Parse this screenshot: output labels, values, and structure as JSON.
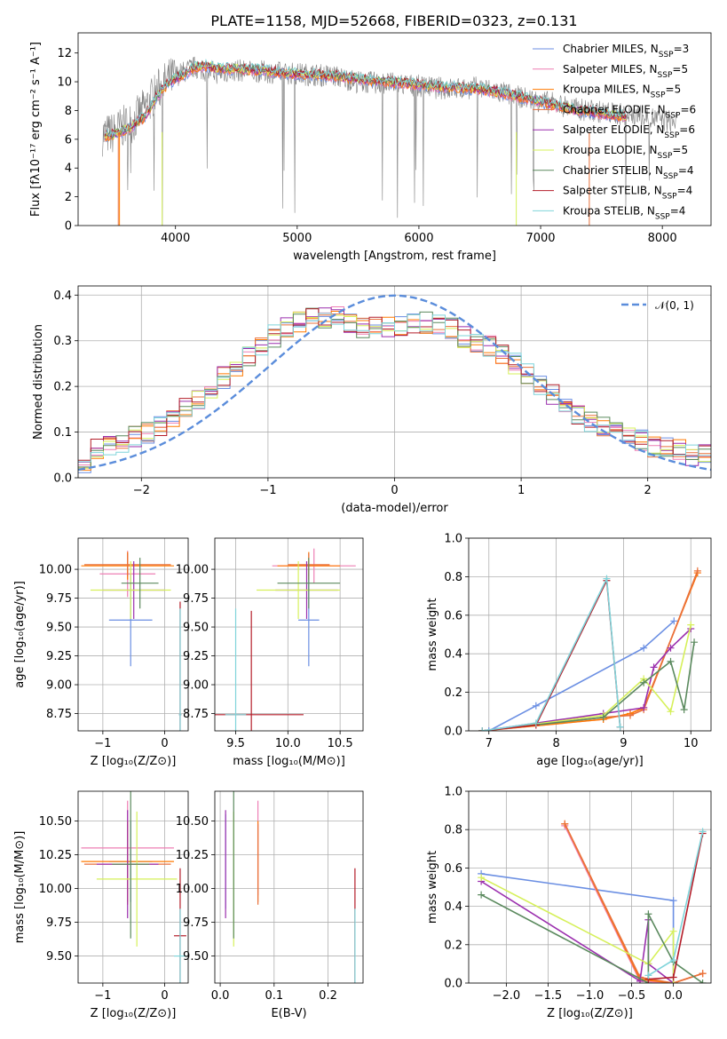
{
  "figure_title": "PLATE=1158, MJD=52668, FIBERID=0323, z=0.131",
  "colors": {
    "Chabrier MILES": "#6b8fe3",
    "Salpeter MILES": "#ee7fb4",
    "Kroupa MILES": "#ff7a00",
    "Chabrier ELODIE": "#e9713b",
    "Salpeter ELODIE": "#9b2fae",
    "Kroupa ELODIE": "#d6f05a",
    "Chabrier STELIB": "#5b8a5e",
    "Salpeter STELIB": "#b41e2a",
    "Kroupa STELIB": "#7fd4da",
    "data": "#808080",
    "normal": "#5b8ddb"
  },
  "chart_data": [
    {
      "type": "line",
      "title": "PLATE=1158, MJD=52668, FIBERID=0323, z=0.131",
      "xlabel": "wavelength [Angstrom, rest frame]",
      "ylabel": "Flux [fλ10⁻¹⁷ erg cm⁻² s⁻¹ A⁻¹]",
      "xlim": [
        3200,
        8400
      ],
      "ylim": [
        0,
        13.4
      ],
      "xticks": [
        4000,
        5000,
        6000,
        7000,
        8000
      ],
      "yticks": [
        0,
        2,
        4,
        6,
        8,
        10,
        12
      ],
      "legend_position": "top-right",
      "legend": [
        "Chabrier MILES, N_SSP=3",
        "Salpeter MILES, N_SSP=5",
        "Kroupa MILES, N_SSP=5",
        "Chabrier ELODIE, N_SSP=6",
        "Salpeter ELODIE, N_SSP=6",
        "Kroupa ELODIE, N_SSP=5",
        "Chabrier STELIB, N_SSP=4",
        "Salpeter STELIB, N_SSP=4",
        "Kroupa STELIB, N_SSP=4"
      ],
      "series": [
        {
          "name": "data",
          "x": [
            3400,
            3480,
            3550,
            3650,
            3750,
            3850,
            3950,
            4050,
            4150,
            4250,
            4350,
            4500,
            4700,
            4900,
            5100,
            5300,
            5500,
            5700,
            5900,
            6100,
            6300,
            6500,
            6700,
            6900,
            7100,
            7300,
            7500,
            7700,
            7900,
            8100
          ],
          "y": [
            6.3,
            6.4,
            6.8,
            7.2,
            8.2,
            9.4,
            10.2,
            10.6,
            11.0,
            10.8,
            10.6,
            10.8,
            10.7,
            10.6,
            10.5,
            10.4,
            10.0,
            9.9,
            9.8,
            9.6,
            9.5,
            9.6,
            9.2,
            8.8,
            8.5,
            8.1,
            7.9,
            7.7,
            7.5,
            7.2
          ]
        },
        {
          "name": "model",
          "x": [
            3400,
            3480,
            3550,
            3650,
            3750,
            3850,
            3950,
            4050,
            4150,
            4250,
            4350,
            4500,
            4700,
            4900,
            5100,
            5300,
            5500,
            5700,
            5900,
            6100,
            6300,
            6500,
            6700,
            6900,
            7100,
            7300,
            7500,
            7700
          ],
          "y": [
            6.2,
            6.3,
            6.5,
            6.9,
            7.6,
            9.0,
            10.0,
            10.4,
            11.0,
            11.1,
            10.9,
            10.9,
            10.8,
            10.6,
            10.5,
            10.4,
            10.2,
            10.0,
            9.9,
            9.7,
            9.6,
            9.5,
            9.2,
            8.8,
            8.4,
            8.0,
            7.8,
            7.6
          ]
        }
      ]
    },
    {
      "type": "line",
      "xlabel": "(data-model)/error",
      "ylabel": "Normed distribution",
      "xlim": [
        -2.5,
        2.5
      ],
      "ylim": [
        0,
        0.42
      ],
      "xticks": [
        -2,
        -1,
        0,
        1,
        2
      ],
      "yticks": [
        0.0,
        0.1,
        0.2,
        0.3,
        0.4
      ],
      "grid": true,
      "legend_position": "top-right",
      "legend": [
        "𝒩(0, 1)"
      ],
      "normal_curve": {
        "mu": 0,
        "sigma": 1
      },
      "histogram_bins": [
        -2.5,
        2.5,
        50
      ],
      "histogram_envelope": [
        0.03,
        0.06,
        0.07,
        0.08,
        0.09,
        0.1,
        0.11,
        0.13,
        0.15,
        0.17,
        0.19,
        0.22,
        0.24,
        0.27,
        0.29,
        0.31,
        0.33,
        0.34,
        0.35,
        0.35,
        0.35,
        0.34,
        0.33,
        0.33,
        0.33,
        0.33,
        0.34,
        0.34,
        0.34,
        0.33,
        0.31,
        0.3,
        0.29,
        0.27,
        0.25,
        0.23,
        0.2,
        0.18,
        0.16,
        0.14,
        0.12,
        0.11,
        0.1,
        0.09,
        0.08,
        0.07,
        0.07,
        0.06,
        0.05,
        0.05
      ]
    },
    {
      "type": "scatter",
      "xlabel": "Z [log₁₀(Z/Z⊙)]",
      "ylabel": "age  [log₁₀(age/yr)]",
      "xlim": [
        -1.4,
        0.38
      ],
      "ylim": [
        8.6,
        10.27
      ],
      "xticks": [
        -1,
        0
      ],
      "yticks": [
        8.75,
        9.0,
        9.25,
        9.5,
        9.75,
        10.0
      ],
      "grid": true,
      "points": [
        {
          "name": "Chabrier MILES",
          "x": -0.55,
          "xerr": 0.35,
          "y": 9.56,
          "yerr": 0.4
        },
        {
          "name": "Salpeter MILES",
          "x": -0.6,
          "xerr": 0.45,
          "y": 9.96,
          "yerr": 0.2
        },
        {
          "name": "Kroupa MILES",
          "x": -0.6,
          "xerr": 0.75,
          "y": 10.03,
          "yerr": 0.12
        },
        {
          "name": "Chabrier ELODIE",
          "x": -0.6,
          "xerr": 0.7,
          "y": 10.04,
          "yerr": 0.1
        },
        {
          "name": "Salpeter ELODIE",
          "x": -0.5,
          "xerr": 0.5,
          "y": 9.82,
          "yerr": 0.25
        },
        {
          "name": "Kroupa ELODIE",
          "x": -0.55,
          "xerr": 0.65,
          "y": 9.82,
          "yerr": 0.25
        },
        {
          "name": "Chabrier STELIB",
          "x": -0.4,
          "xerr": 0.3,
          "y": 9.88,
          "yerr": 0.22
        },
        {
          "name": "Salpeter STELIB",
          "x": 0.25,
          "xerr": 0.02,
          "y": 8.74,
          "yerr": 0.98
        },
        {
          "name": "Kroupa STELIB",
          "x": 0.25,
          "xerr": 0.02,
          "y": 8.74,
          "yerr": 0.92
        }
      ]
    },
    {
      "type": "scatter",
      "xlabel": "mass [log₁₀(M/M⊙)]",
      "xlim": [
        9.3,
        10.72
      ],
      "ylim": [
        8.6,
        10.27
      ],
      "xticks": [
        9.5,
        10.0,
        10.5
      ],
      "yticks": [
        8.75,
        9.0,
        9.25,
        9.5,
        9.75,
        10.0
      ],
      "grid": true,
      "points": [
        {
          "name": "Chabrier MILES",
          "x": 10.2,
          "xerr": 0.1,
          "y": 9.56,
          "yerr": 0.4
        },
        {
          "name": "Salpeter MILES",
          "x": 10.25,
          "xerr": 0.4,
          "y": 10.03,
          "yerr": 0.15
        },
        {
          "name": "Kroupa MILES",
          "x": 10.2,
          "xerr": 0.3,
          "y": 10.03,
          "yerr": 0.12
        },
        {
          "name": "Chabrier ELODIE",
          "x": 10.2,
          "xerr": 0.2,
          "y": 10.04,
          "yerr": 0.1
        },
        {
          "name": "Salpeter ELODIE",
          "x": 10.18,
          "xerr": 0.3,
          "y": 9.82,
          "yerr": 0.25
        },
        {
          "name": "Kroupa ELODIE",
          "x": 10.1,
          "xerr": 0.4,
          "y": 9.82,
          "yerr": 0.25
        },
        {
          "name": "Chabrier STELIB",
          "x": 10.2,
          "xerr": 0.3,
          "y": 9.88,
          "yerr": 0.22
        },
        {
          "name": "Salpeter STELIB",
          "x": 9.65,
          "xerr": 0.5,
          "y": 8.74,
          "yerr": 0.9
        },
        {
          "name": "Kroupa STELIB",
          "x": 9.5,
          "xerr": 0.1,
          "y": 8.74,
          "yerr": 0.92
        }
      ]
    },
    {
      "type": "line",
      "xlabel": "age  [log₁₀(age/yr)]",
      "ylabel": "mass weight",
      "xlim": [
        6.7,
        10.3
      ],
      "ylim": [
        0,
        1.0
      ],
      "xticks": [
        7,
        8,
        9,
        10
      ],
      "yticks": [
        0.0,
        0.2,
        0.4,
        0.6,
        0.8,
        1.0
      ],
      "grid": true,
      "series": [
        {
          "name": "Chabrier MILES",
          "x": [
            7.0,
            7.7,
            9.3,
            9.75
          ],
          "y": [
            0.0,
            0.13,
            0.43,
            0.57
          ]
        },
        {
          "name": "Salpeter MILES",
          "x": [
            6.9,
            8.7,
            9.1,
            9.3,
            10.1
          ],
          "y": [
            0.0,
            0.06,
            0.09,
            0.12,
            0.82
          ]
        },
        {
          "name": "Kroupa MILES",
          "x": [
            6.9,
            8.7,
            9.1,
            9.3,
            10.1
          ],
          "y": [
            0.0,
            0.06,
            0.09,
            0.12,
            0.82
          ]
        },
        {
          "name": "Chabrier ELODIE",
          "x": [
            6.9,
            8.7,
            9.1,
            9.3,
            10.1
          ],
          "y": [
            0.0,
            0.07,
            0.08,
            0.11,
            0.83
          ]
        },
        {
          "name": "Salpeter ELODIE",
          "x": [
            6.9,
            8.7,
            9.3,
            9.45,
            9.7,
            10.0
          ],
          "y": [
            0.0,
            0.09,
            0.12,
            0.33,
            0.43,
            0.53
          ]
        },
        {
          "name": "Kroupa ELODIE",
          "x": [
            6.9,
            8.7,
            9.3,
            9.7,
            10.0
          ],
          "y": [
            0.0,
            0.08,
            0.27,
            0.1,
            0.55
          ]
        },
        {
          "name": "Chabrier STELIB",
          "x": [
            6.9,
            8.7,
            9.3,
            9.7,
            9.9,
            10.05
          ],
          "y": [
            0.0,
            0.07,
            0.25,
            0.36,
            0.11,
            0.46
          ]
        },
        {
          "name": "Salpeter STELIB",
          "x": [
            6.9,
            7.7,
            8.75,
            8.95
          ],
          "y": [
            0.0,
            0.03,
            0.78,
            0.02
          ]
        },
        {
          "name": "Kroupa STELIB",
          "x": [
            6.9,
            7.7,
            8.75,
            8.95
          ],
          "y": [
            0.0,
            0.04,
            0.79,
            0.02
          ]
        }
      ]
    },
    {
      "type": "scatter",
      "xlabel": "Z [log₁₀(Z/Z⊙)]",
      "ylabel": "mass [log₁₀(M/M⊙)]",
      "xlim": [
        -1.4,
        0.38
      ],
      "ylim": [
        9.3,
        10.72
      ],
      "xticks": [
        -1,
        0
      ],
      "yticks": [
        9.5,
        9.75,
        10.0,
        10.25,
        10.5
      ],
      "grid": true,
      "points": [
        {
          "name": "Chabrier MILES",
          "x": -0.55,
          "xerr": 0.35,
          "y": 10.2,
          "yerr": 0.3
        },
        {
          "name": "Salpeter MILES",
          "x": -0.6,
          "xerr": 0.75,
          "y": 10.3,
          "yerr": 0.35
        },
        {
          "name": "Kroupa MILES",
          "x": -0.6,
          "xerr": 0.75,
          "y": 10.2,
          "yerr": 0.3
        },
        {
          "name": "Chabrier ELODIE",
          "x": -0.6,
          "xerr": 0.7,
          "y": 10.18,
          "yerr": 0.3
        },
        {
          "name": "Salpeter ELODIE",
          "x": -0.6,
          "xerr": 0.5,
          "y": 10.18,
          "yerr": 0.4
        },
        {
          "name": "Kroupa ELODIE",
          "x": -0.45,
          "xerr": 0.65,
          "y": 10.07,
          "yerr": 0.5
        },
        {
          "name": "Chabrier STELIB",
          "x": -0.55,
          "xerr": 0.3,
          "y": 10.18,
          "yerr": 0.55
        },
        {
          "name": "Salpeter STELIB",
          "x": 0.25,
          "xerr": 0.1,
          "y": 9.65,
          "yerr": 0.5
        },
        {
          "name": "Kroupa STELIB",
          "x": 0.25,
          "xerr": 0.1,
          "y": 9.5,
          "yerr": 0.35
        }
      ]
    },
    {
      "type": "scatter",
      "xlabel": "E(B-V)",
      "xlim": [
        -0.01,
        0.265
      ],
      "ylim": [
        9.3,
        10.72
      ],
      "xticks": [
        0.0,
        0.1,
        0.2
      ],
      "yticks": [
        9.5,
        9.75,
        10.0,
        10.25,
        10.5
      ],
      "grid": true,
      "points": [
        {
          "name": "Chabrier MILES",
          "x": 0.01,
          "y": 10.2,
          "yerr": 0.35
        },
        {
          "name": "Salpeter MILES",
          "x": 0.07,
          "y": 10.3,
          "yerr": 0.35
        },
        {
          "name": "Kroupa MILES",
          "x": 0.07,
          "y": 10.2,
          "yerr": 0.3
        },
        {
          "name": "Chabrier ELODIE",
          "x": 0.07,
          "y": 10.18,
          "yerr": 0.3
        },
        {
          "name": "Salpeter ELODIE",
          "x": 0.01,
          "y": 10.18,
          "yerr": 0.4
        },
        {
          "name": "Kroupa ELODIE",
          "x": 0.025,
          "y": 10.07,
          "yerr": 0.5
        },
        {
          "name": "Chabrier STELIB",
          "x": 0.025,
          "y": 10.18,
          "yerr": 0.55
        },
        {
          "name": "Salpeter STELIB",
          "x": 0.25,
          "y": 9.65,
          "yerr": 0.5
        },
        {
          "name": "Kroupa STELIB",
          "x": 0.25,
          "y": 9.5,
          "yerr": 0.35
        }
      ]
    },
    {
      "type": "line",
      "xlabel": "Z [log₁₀(Z/Z⊙)]",
      "ylabel": "mass weight",
      "xlim": [
        -2.45,
        0.45
      ],
      "ylim": [
        0,
        1.0
      ],
      "xticks": [
        -2.0,
        -1.5,
        -1.0,
        -0.5,
        0.0
      ],
      "yticks": [
        0.0,
        0.2,
        0.4,
        0.6,
        0.8,
        1.0
      ],
      "grid": true,
      "series": [
        {
          "name": "Chabrier MILES",
          "x": [
            -2.3,
            0.0,
            0.0
          ],
          "y": [
            0.57,
            0.43,
            0.0
          ]
        },
        {
          "name": "Salpeter MILES",
          "x": [
            -1.3,
            -0.4,
            0.0,
            0.35
          ],
          "y": [
            0.82,
            0.01,
            0.0,
            0.05
          ]
        },
        {
          "name": "Kroupa MILES",
          "x": [
            -1.3,
            -0.4,
            0.0,
            0.35
          ],
          "y": [
            0.83,
            0.02,
            0.0,
            0.05
          ]
        },
        {
          "name": "Chabrier ELODIE",
          "x": [
            -1.3,
            -0.4,
            0.0,
            0.35
          ],
          "y": [
            0.83,
            0.03,
            0.0,
            0.05
          ]
        },
        {
          "name": "Salpeter ELODIE",
          "x": [
            -2.3,
            -0.4,
            -0.3,
            -0.3,
            0.0
          ],
          "y": [
            0.53,
            0.01,
            0.33,
            0.1,
            0.0
          ]
        },
        {
          "name": "Kroupa ELODIE",
          "x": [
            -2.3,
            -0.3,
            0.0,
            0.0
          ],
          "y": [
            0.55,
            0.1,
            0.27,
            0.0
          ]
        },
        {
          "name": "Chabrier STELIB",
          "x": [
            -2.3,
            -0.3,
            -0.3,
            0.0,
            0.35
          ],
          "y": [
            0.46,
            0.0,
            0.36,
            0.11,
            0.0
          ]
        },
        {
          "name": "Salpeter STELIB",
          "x": [
            -0.3,
            0.0,
            0.35
          ],
          "y": [
            0.02,
            0.03,
            0.78
          ]
        },
        {
          "name": "Kroupa STELIB",
          "x": [
            -0.3,
            0.0,
            0.35
          ],
          "y": [
            0.04,
            0.12,
            0.79
          ]
        }
      ]
    }
  ]
}
